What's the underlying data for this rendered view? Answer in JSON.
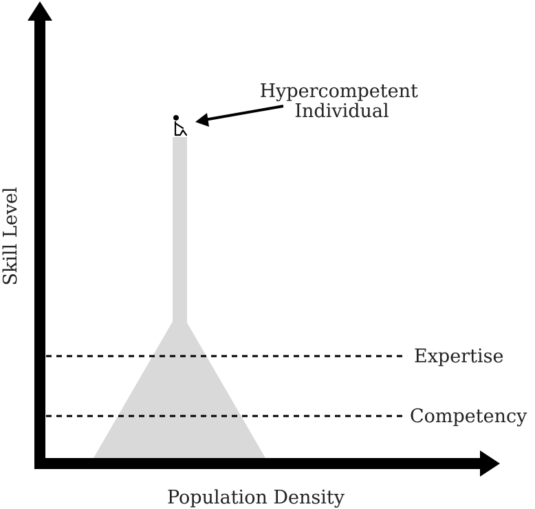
{
  "diagram": {
    "y_axis_label": "Skill Level",
    "x_axis_label": "Population Density",
    "annotation": {
      "line1": "Hypercompetent",
      "line2": "Individual"
    },
    "thresholds": {
      "expertise": "Expertise",
      "competency": "Competency"
    },
    "icons": {
      "person": "person-sitting-icon"
    },
    "colors": {
      "axis": "#000000",
      "distribution": "#d9d9d9",
      "text": "#222222"
    }
  }
}
